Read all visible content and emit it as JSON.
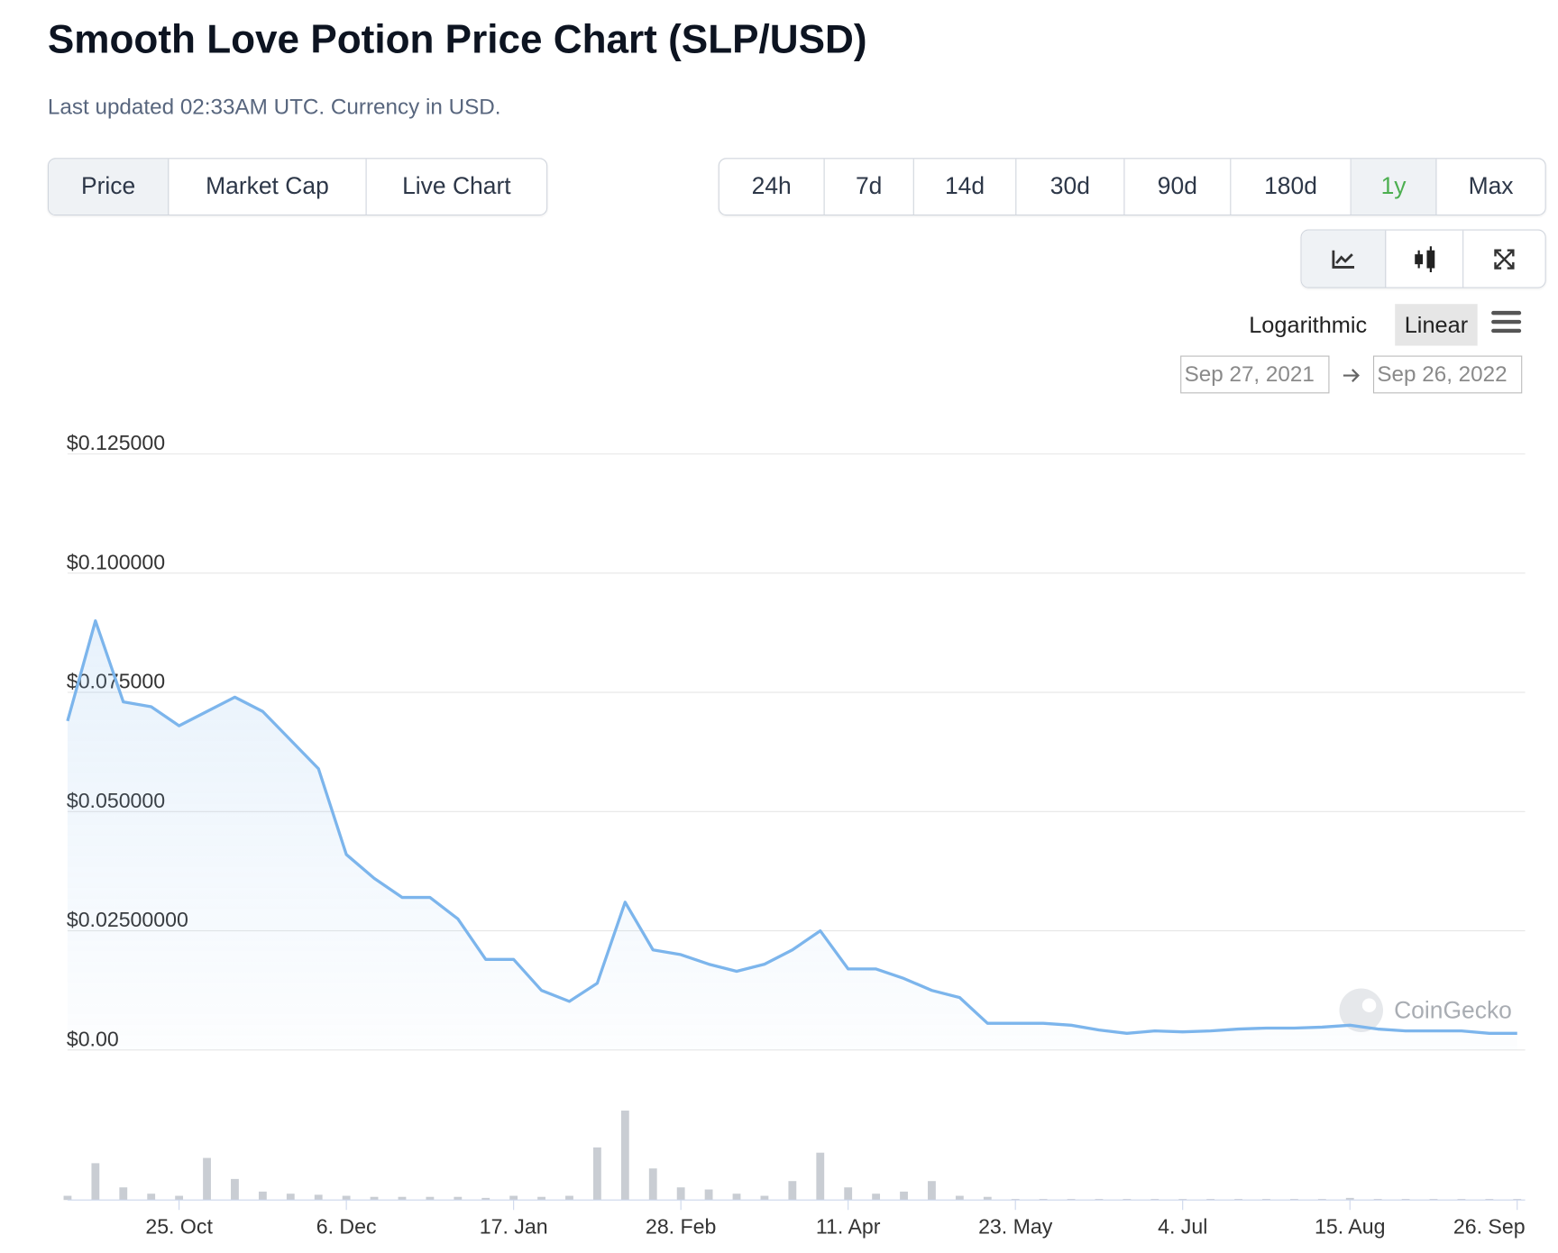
{
  "header": {
    "title": "Smooth Love Potion Price Chart (SLP/USD)",
    "subtitle": "Last updated 02:33AM UTC. Currency in USD."
  },
  "tabs": [
    "Price",
    "Market Cap",
    "Live Chart"
  ],
  "ranges": [
    "24h",
    "7d",
    "14d",
    "30d",
    "90d",
    "180d",
    "1y",
    "Max"
  ],
  "scales": [
    "Logarithmic",
    "Linear"
  ],
  "date_from": "Sep 27, 2021",
  "date_to": "Sep 26, 2022",
  "chart_data": {
    "type": "line",
    "categories": [
      null,
      null,
      null,
      null,
      "25. Oct",
      null,
      null,
      null,
      null,
      null,
      "6. Dec",
      null,
      null,
      null,
      null,
      null,
      "17. Jan",
      null,
      null,
      null,
      null,
      null,
      "28. Feb",
      null,
      null,
      null,
      null,
      null,
      "11. Apr",
      null,
      null,
      null,
      null,
      null,
      "23. May",
      null,
      null,
      null,
      null,
      null,
      "4. Jul",
      null,
      null,
      null,
      null,
      null,
      "15. Aug",
      null,
      null,
      null,
      null,
      null,
      "26. Sep"
    ],
    "values": [
      0.069,
      0.09,
      0.073,
      0.072,
      0.068,
      0.071,
      0.074,
      0.071,
      0.065,
      0.059,
      0.041,
      0.036,
      0.032,
      0.032,
      0.0275,
      0.019,
      0.019,
      0.0125,
      0.0102,
      0.014,
      0.031,
      0.021,
      0.02,
      0.018,
      0.0165,
      0.018,
      0.021,
      0.025,
      0.017,
      0.017,
      0.015,
      0.0125,
      0.011,
      0.0056,
      0.0056,
      0.0056,
      0.0052,
      0.0042,
      0.0035,
      0.004,
      0.0038,
      0.004,
      0.0044,
      0.0046,
      0.0046,
      0.0048,
      0.0052,
      0.0044,
      0.004,
      0.004,
      0.004,
      0.0035,
      0.0035
    ],
    "color": "#7cb5ec",
    "volume": [
      4,
      35,
      12,
      6,
      4,
      40,
      20,
      8,
      6,
      5,
      4,
      3,
      3,
      3,
      3,
      2,
      4,
      3,
      4,
      50,
      85,
      30,
      12,
      10,
      6,
      4,
      18,
      45,
      12,
      6,
      8,
      18,
      4,
      3,
      1,
      1,
      1,
      1,
      1,
      1,
      1,
      1,
      1,
      1,
      1,
      1,
      2,
      1,
      1,
      1,
      1,
      1,
      1
    ],
    "volume_color": "#c9cdd3",
    "ylim": [
      0,
      0.125
    ],
    "yticks": [
      {
        "value": 0,
        "label": "$0.00"
      },
      {
        "value": 0.025,
        "label": "$0.02500000"
      },
      {
        "value": 0.05,
        "label": "$0.050000"
      },
      {
        "value": 0.075,
        "label": "$0.075000"
      },
      {
        "value": 0.1,
        "label": "$0.100000"
      },
      {
        "value": 0.125,
        "label": "$0.125000"
      }
    ],
    "grid": true,
    "watermark": "CoinGecko"
  }
}
